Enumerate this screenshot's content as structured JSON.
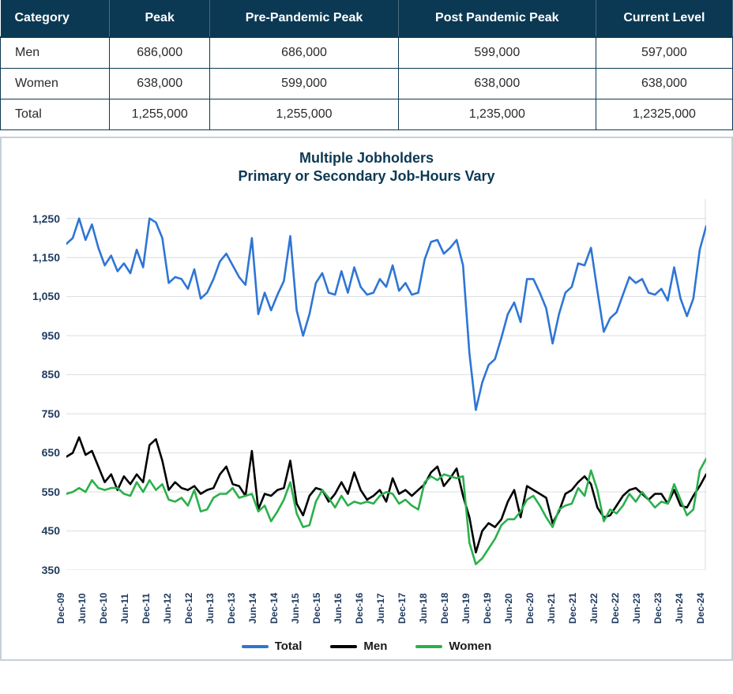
{
  "table": {
    "header_bg": "#0b3954",
    "header_fg": "#ffffff",
    "border_color": "#0b3954",
    "columns": [
      "Category",
      "Peak",
      "Pre-Pandemic Peak",
      "Post Pandemic Peak",
      "Current Level"
    ],
    "rows": [
      [
        "Men",
        "686,000",
        "686,000",
        "599,000",
        "597,000"
      ],
      [
        "Women",
        "638,000",
        "599,000",
        "638,000",
        "638,000"
      ],
      [
        "Total",
        "1,255,000",
        "1,255,000",
        "1,235,000",
        "1,2325,000"
      ]
    ]
  },
  "chart": {
    "type": "line",
    "title_line1": "Multiple Jobholders",
    "title_line2": "Primary or Secondary Job-Hours Vary",
    "title_color": "#0b3954",
    "title_fontsize": 18,
    "background_color": "#ffffff",
    "frame_border_color": "#c7d0d7",
    "grid_color": "#d9dde1",
    "axis_font_color": "#1f3a5f",
    "ylim": [
      350,
      1300
    ],
    "yticks": [
      350,
      450,
      550,
      650,
      750,
      850,
      950,
      1050,
      1150,
      1250
    ],
    "ytick_labels": [
      "350",
      "450",
      "550",
      "650",
      "750",
      "850",
      "950",
      "1,050",
      "1,150",
      "1,250"
    ],
    "x_categories": [
      "Dec-09",
      "Jun-10",
      "Dec-10",
      "Jun-11",
      "Dec-11",
      "Jun-12",
      "Dec-12",
      "Jun-13",
      "Dec-13",
      "Jun-14",
      "Dec-14",
      "Jun-15",
      "Dec-15",
      "Jun-16",
      "Dec-16",
      "Jun-17",
      "Dec-17",
      "Jun-18",
      "Dec-18",
      "Jun-19",
      "Dec-19",
      "Jun-20",
      "Dec-20",
      "Jun-21",
      "Dec-21",
      "Jun-22",
      "Dec-22",
      "Jun-23",
      "Dec-23",
      "Jun-24",
      "Dec-24"
    ],
    "line_width": 2.6,
    "series": [
      {
        "name": "Total",
        "color": "#2e75d6",
        "values": [
          1185,
          1200,
          1250,
          1195,
          1235,
          1175,
          1130,
          1155,
          1115,
          1135,
          1110,
          1170,
          1125,
          1250,
          1240,
          1200,
          1085,
          1100,
          1095,
          1070,
          1120,
          1045,
          1060,
          1095,
          1140,
          1160,
          1130,
          1100,
          1080,
          1200,
          1005,
          1060,
          1015,
          1055,
          1090,
          1205,
          1015,
          950,
          1005,
          1085,
          1110,
          1060,
          1055,
          1115,
          1060,
          1125,
          1075,
          1055,
          1060,
          1095,
          1075,
          1130,
          1065,
          1085,
          1055,
          1060,
          1145,
          1190,
          1195,
          1160,
          1175,
          1195,
          1130,
          905,
          760,
          830,
          875,
          890,
          945,
          1005,
          1035,
          985,
          1095,
          1095,
          1060,
          1020,
          930,
          1005,
          1060,
          1075,
          1135,
          1130,
          1175,
          1065,
          960,
          995,
          1010,
          1055,
          1100,
          1085,
          1095,
          1060,
          1055,
          1070,
          1040,
          1125,
          1045,
          1000,
          1045,
          1170,
          1230
        ]
      },
      {
        "name": "Men",
        "color": "#000000",
        "values": [
          640,
          650,
          690,
          645,
          655,
          615,
          575,
          595,
          555,
          590,
          570,
          595,
          575,
          670,
          685,
          630,
          555,
          575,
          560,
          555,
          565,
          545,
          555,
          560,
          595,
          615,
          570,
          565,
          540,
          655,
          505,
          545,
          540,
          555,
          560,
          630,
          520,
          490,
          540,
          560,
          555,
          525,
          545,
          575,
          545,
          600,
          555,
          530,
          540,
          555,
          525,
          585,
          545,
          555,
          540,
          555,
          570,
          600,
          615,
          565,
          585,
          610,
          540,
          485,
          395,
          450,
          470,
          460,
          480,
          525,
          555,
          485,
          565,
          555,
          545,
          535,
          470,
          500,
          545,
          555,
          575,
          590,
          570,
          510,
          485,
          490,
          515,
          540,
          555,
          560,
          545,
          530,
          545,
          545,
          520,
          555,
          515,
          510,
          540,
          565,
          595
        ]
      },
      {
        "name": "Women",
        "color": "#2bb04c",
        "values": [
          545,
          550,
          560,
          550,
          580,
          560,
          555,
          560,
          560,
          545,
          540,
          575,
          550,
          580,
          555,
          570,
          530,
          525,
          535,
          515,
          555,
          500,
          505,
          535,
          545,
          545,
          560,
          535,
          540,
          545,
          500,
          515,
          475,
          500,
          530,
          575,
          495,
          460,
          465,
          525,
          555,
          535,
          510,
          540,
          515,
          525,
          520,
          525,
          520,
          540,
          550,
          545,
          520,
          530,
          515,
          505,
          575,
          590,
          580,
          595,
          590,
          585,
          590,
          420,
          365,
          380,
          405,
          430,
          465,
          480,
          480,
          500,
          530,
          540,
          515,
          485,
          460,
          505,
          515,
          520,
          560,
          540,
          605,
          555,
          475,
          505,
          495,
          515,
          545,
          525,
          550,
          530,
          510,
          525,
          520,
          570,
          530,
          490,
          505,
          605,
          635
        ]
      }
    ],
    "legend": {
      "items": [
        {
          "label": "Total",
          "color": "#2e75d6"
        },
        {
          "label": "Men",
          "color": "#000000"
        },
        {
          "label": "Women",
          "color": "#2bb04c"
        }
      ]
    }
  }
}
